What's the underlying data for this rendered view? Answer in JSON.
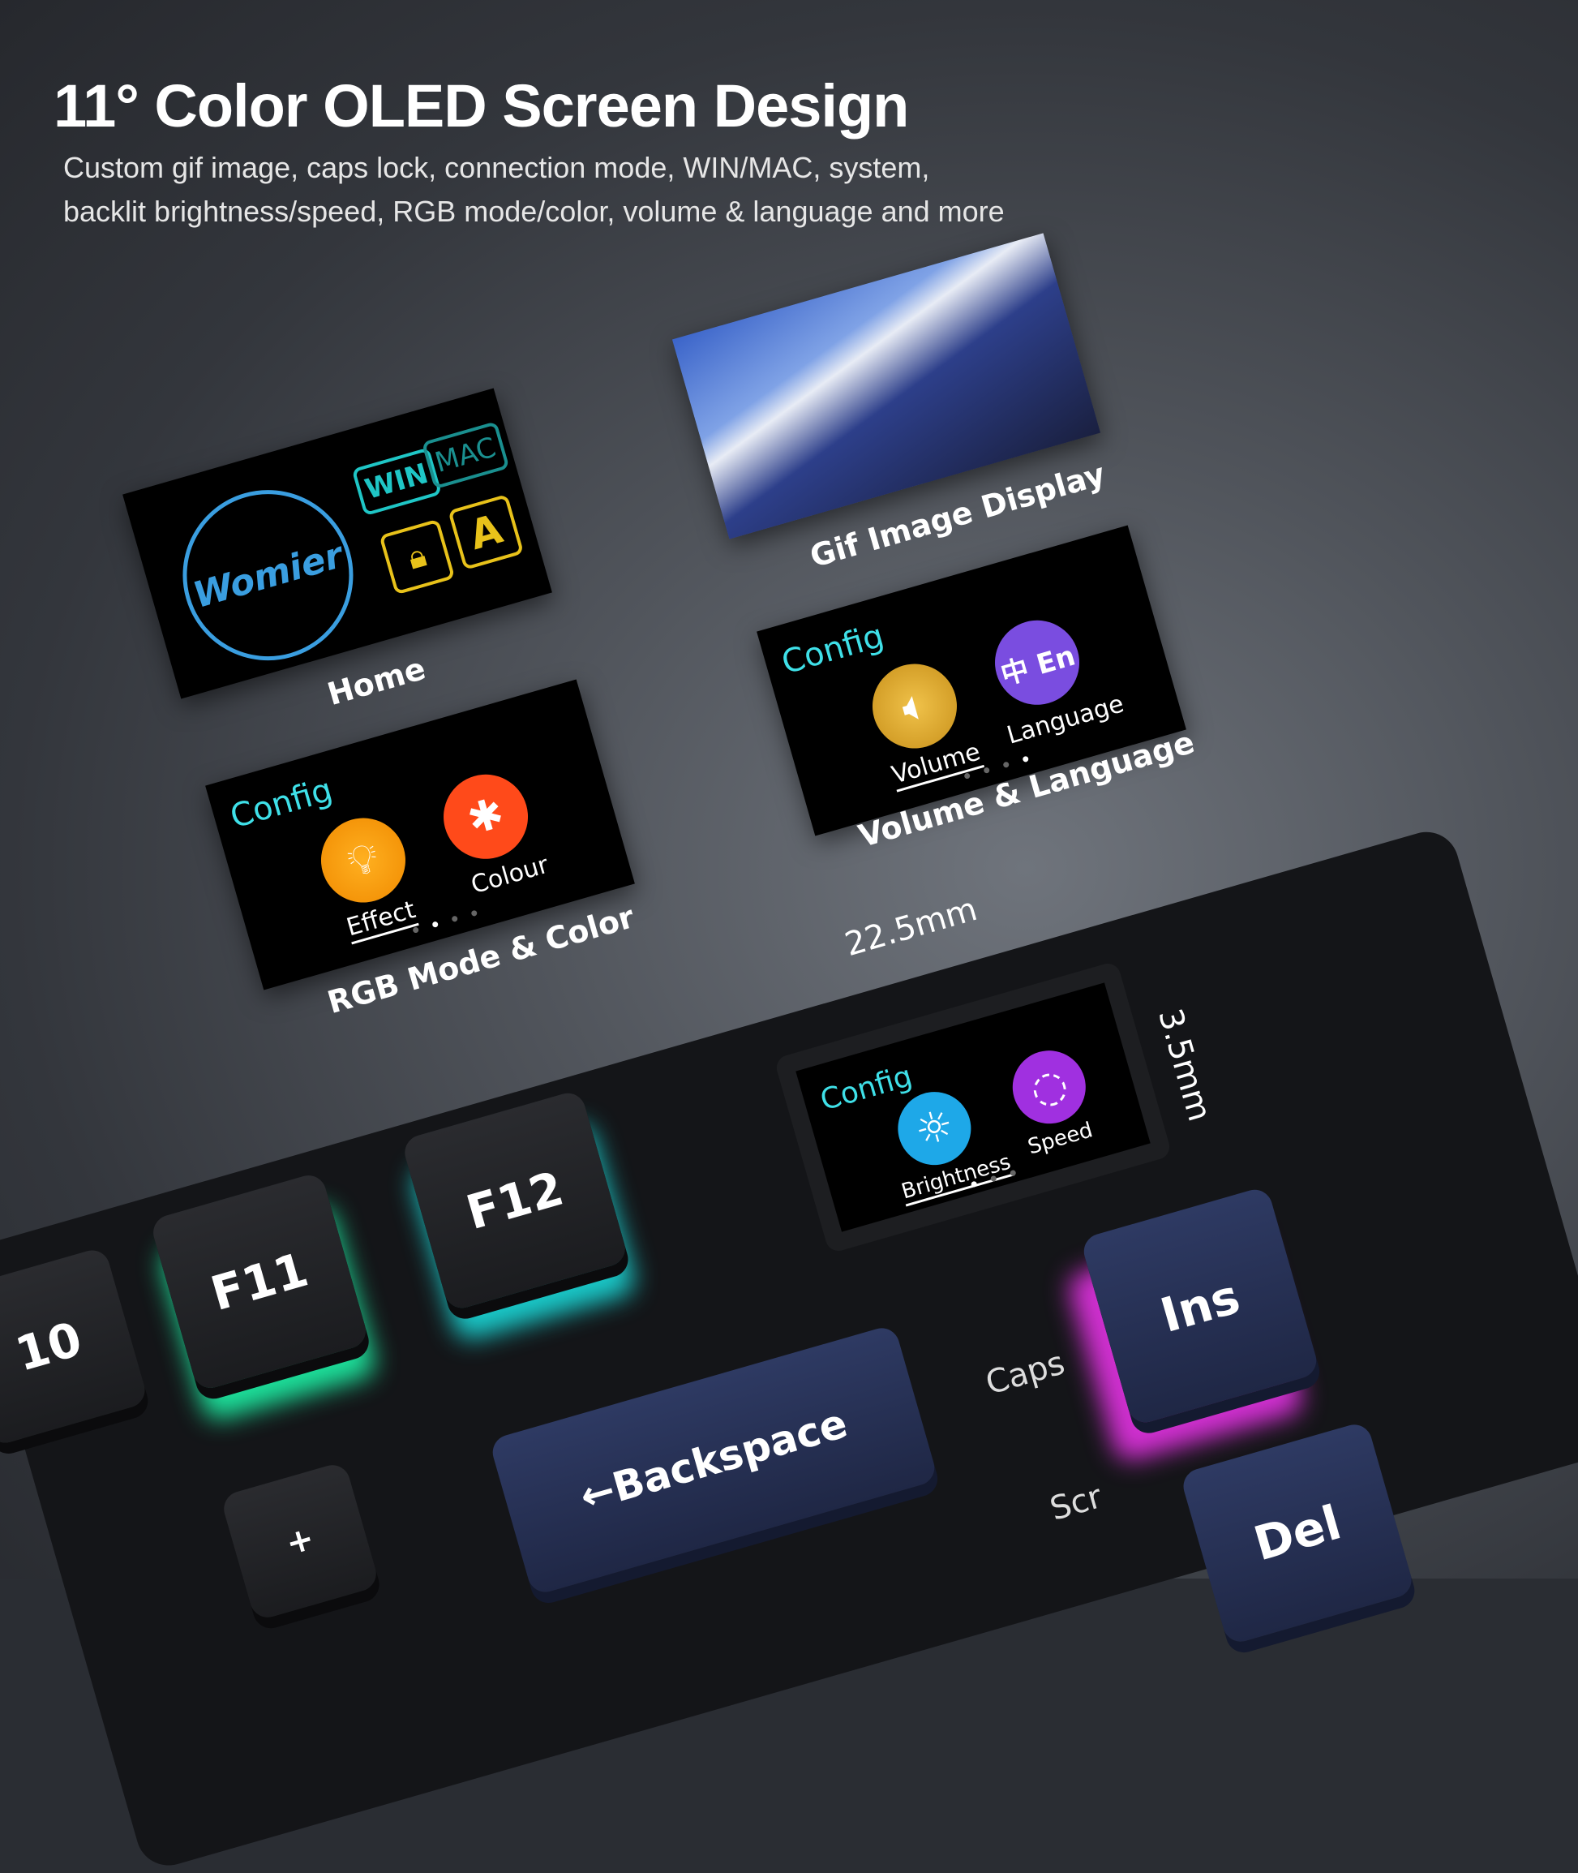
{
  "title": "11° Color OLED Screen Design",
  "subtitle": [
    "Custom gif image, caps lock, connection mode, WIN/MAC, system,",
    "backlit brightness/speed, RGB mode/color, volume & language and more"
  ],
  "home": {
    "label": "Home",
    "logo": "Womier",
    "win": "WIN",
    "mac": "MAC",
    "caps": "A"
  },
  "gif": {
    "label": "Gif Image Display"
  },
  "volume_language": {
    "label": "Volume & Language",
    "config": "Config",
    "items": [
      "Volume",
      "Language"
    ],
    "lang_icon": "中 En",
    "active_page": 3,
    "pages": 4
  },
  "rgb": {
    "label": "RGB Mode & Color",
    "config": "Config",
    "items": [
      "Effect",
      "Colour"
    ],
    "active_page": 2,
    "pages": 4
  },
  "oled": {
    "config": "Config",
    "items": [
      "Brightness",
      "Speed"
    ],
    "active_page": 1,
    "pages": 3,
    "width": "22.5mm",
    "height": "3.5mm"
  },
  "keys": {
    "f10": "10",
    "f11": "F11",
    "f12": "F12",
    "ins": "Ins",
    "del": "Del",
    "backspace": "←Backspace",
    "plus": "+",
    "caps": "Caps",
    "scr": "Scr"
  },
  "colors": {
    "config": "#3fe0e8",
    "accent_blue": "#3aa0e8",
    "yellow": "#e8c21a"
  }
}
